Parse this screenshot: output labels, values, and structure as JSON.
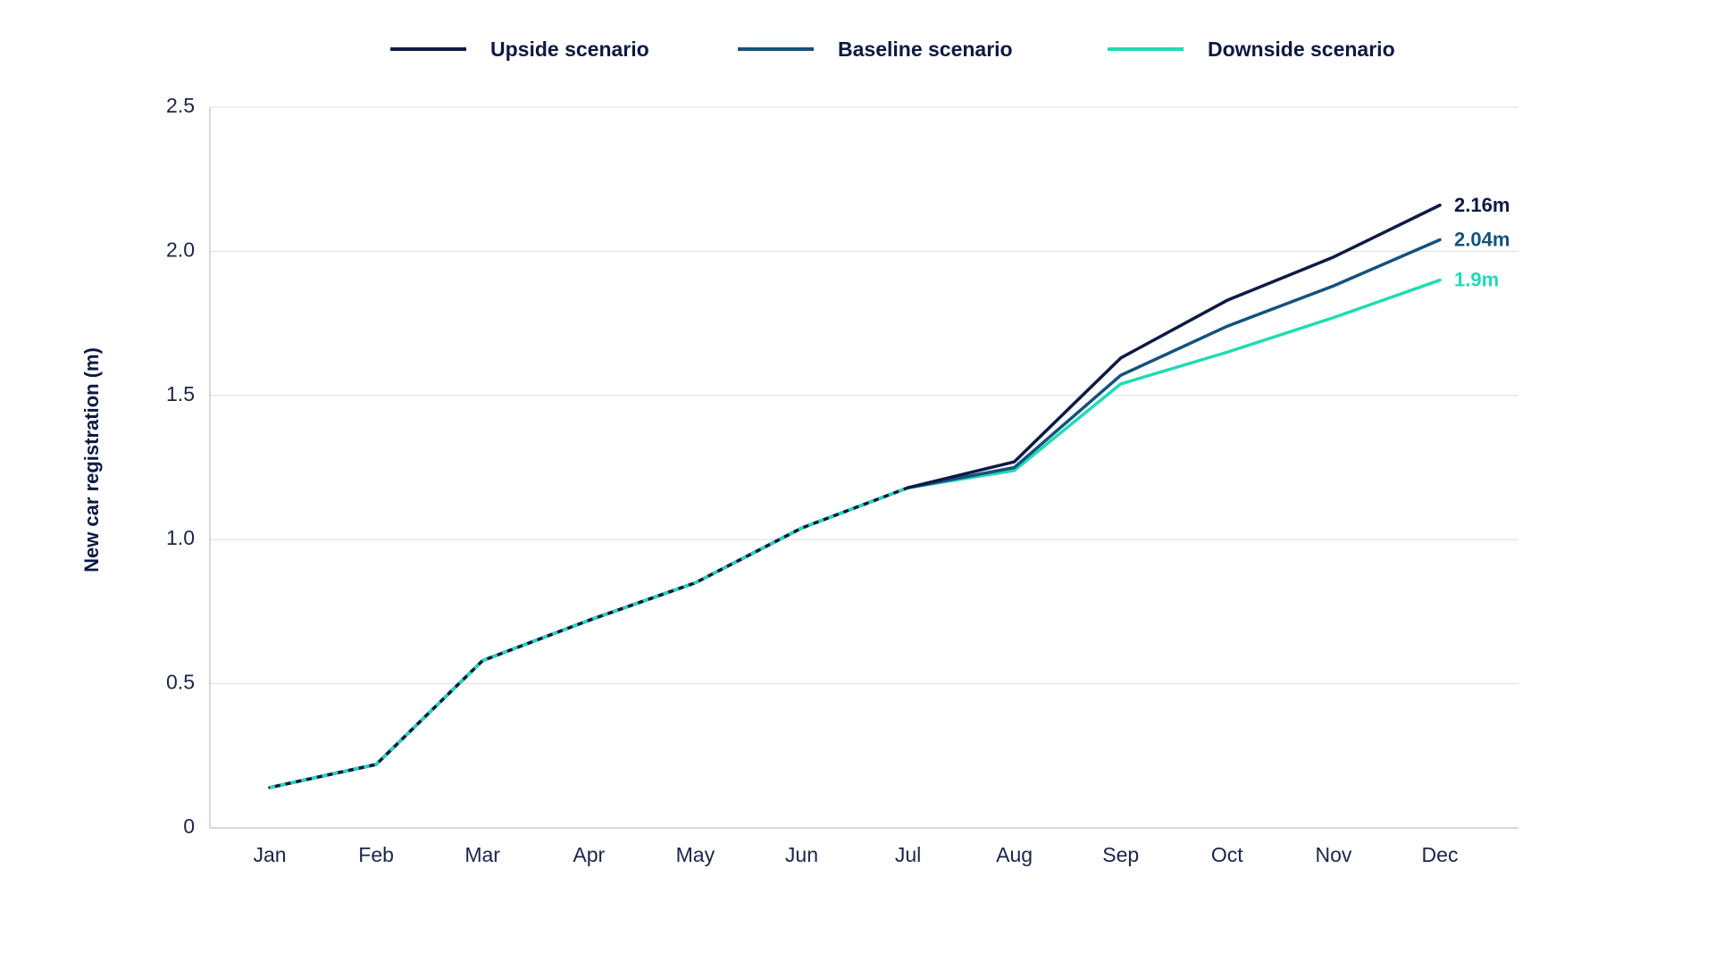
{
  "chart_data": {
    "type": "line",
    "title": "",
    "xlabel": "",
    "ylabel": "New car registration (m)",
    "categories": [
      "Jan",
      "Feb",
      "Mar",
      "Apr",
      "May",
      "Jun",
      "Jul",
      "Aug",
      "Sep",
      "Oct",
      "Nov",
      "Dec"
    ],
    "ylim": [
      0,
      2.5
    ],
    "yticks": [
      0,
      0.5,
      1.0,
      1.5,
      2.0,
      2.5
    ],
    "ytick_labels": [
      "0",
      "0.5",
      "1.0",
      "1.5",
      "2.0",
      "2.5"
    ],
    "grid": "horizontal",
    "legend_position": "top",
    "series": [
      {
        "name": "Upside scenario",
        "color": "#0e1a45",
        "values": [
          0.14,
          0.22,
          0.58,
          0.72,
          0.85,
          1.04,
          1.18,
          1.27,
          1.63,
          1.83,
          1.98,
          2.16
        ],
        "end_label": "2.16m"
      },
      {
        "name": "Baseline scenario",
        "color": "#13527d",
        "values": [
          0.14,
          0.22,
          0.58,
          0.72,
          0.85,
          1.04,
          1.18,
          1.25,
          1.57,
          1.74,
          1.88,
          2.04
        ],
        "end_label": "2.04m"
      },
      {
        "name": "Downside scenario",
        "color": "#1fdbb4",
        "values": [
          0.14,
          0.22,
          0.58,
          0.72,
          0.85,
          1.04,
          1.18,
          1.24,
          1.54,
          1.65,
          1.77,
          1.9
        ],
        "end_label": "1.9m"
      }
    ]
  }
}
